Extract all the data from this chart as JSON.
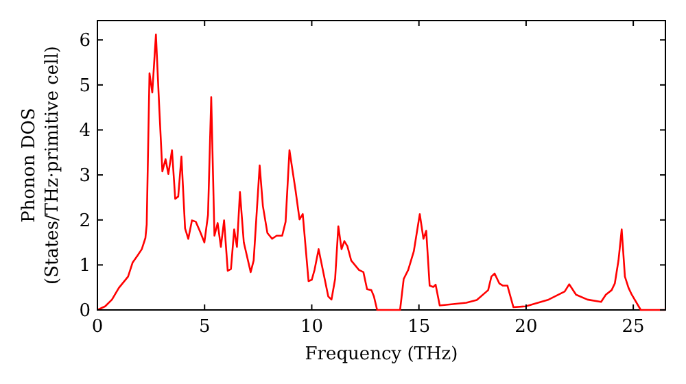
{
  "chart_data": {
    "type": "line",
    "xlabel": "Frequency (THz)",
    "ylabel": "Phonon DOS\n(States/THz·primitive cell)",
    "xlim": [
      0,
      26.5
    ],
    "ylim": [
      0,
      6.43
    ],
    "xticks": [
      0,
      5,
      10,
      15,
      20,
      25
    ],
    "yticks": [
      0,
      1,
      2,
      3,
      4,
      5,
      6
    ],
    "grid": false,
    "marker": "none",
    "line_style": "solid",
    "series": [
      {
        "color": "#ff0000",
        "x": [
          0,
          0.36,
          0.68,
          1.0,
          1.43,
          1.64,
          1.86,
          2.07,
          2.24,
          2.3,
          2.43,
          2.56,
          2.73,
          2.88,
          3.03,
          3.18,
          3.31,
          3.48,
          3.63,
          3.77,
          3.92,
          4.09,
          4.24,
          4.41,
          4.59,
          4.8,
          4.99,
          5.16,
          5.31,
          5.46,
          5.61,
          5.76,
          5.91,
          6.08,
          6.23,
          6.38,
          6.51,
          6.65,
          6.83,
          7.15,
          7.29,
          7.57,
          7.72,
          7.93,
          8.15,
          8.36,
          8.62,
          8.78,
          8.96,
          9.24,
          9.43,
          9.58,
          9.85,
          10.0,
          10.13,
          10.32,
          10.56,
          10.77,
          10.92,
          11.09,
          11.24,
          11.39,
          11.52,
          11.66,
          11.84,
          12.2,
          12.41,
          12.58,
          12.78,
          12.9,
          13.05,
          14.12,
          14.29,
          14.5,
          14.76,
          15.04,
          15.21,
          15.34,
          15.5,
          15.67,
          15.78,
          15.97,
          17.21,
          17.7,
          18.23,
          18.38,
          18.53,
          18.75,
          18.92,
          19.13,
          19.41,
          19.98,
          21.05,
          21.8,
          22.01,
          22.33,
          22.86,
          23.5,
          23.72,
          23.99,
          24.14,
          24.31,
          24.46,
          24.61,
          24.78,
          24.93,
          25.35,
          26.5
        ],
        "values": [
          0,
          0.08,
          0.23,
          0.49,
          0.74,
          1.05,
          1.2,
          1.35,
          1.6,
          1.9,
          5.26,
          4.83,
          6.12,
          4.55,
          3.08,
          3.35,
          3.02,
          3.55,
          2.47,
          2.52,
          3.41,
          1.81,
          1.58,
          1.99,
          1.96,
          1.73,
          1.5,
          2.11,
          4.73,
          1.65,
          1.93,
          1.4,
          1.99,
          0.87,
          0.91,
          1.79,
          1.4,
          2.62,
          1.5,
          0.84,
          1.1,
          3.21,
          2.31,
          1.71,
          1.58,
          1.65,
          1.65,
          1.96,
          3.55,
          2.67,
          2.01,
          2.13,
          0.64,
          0.67,
          0.89,
          1.35,
          0.79,
          0.3,
          0.23,
          0.69,
          1.86,
          1.35,
          1.53,
          1.42,
          1.1,
          0.89,
          0.84,
          0.46,
          0.44,
          0.3,
          0,
          0,
          0.69,
          0.89,
          1.3,
          2.13,
          1.58,
          1.76,
          0.54,
          0.51,
          0.56,
          0.1,
          0.16,
          0.22,
          0.44,
          0.74,
          0.81,
          0.59,
          0.54,
          0.54,
          0.06,
          0.08,
          0.23,
          0.41,
          0.57,
          0.34,
          0.23,
          0.18,
          0.34,
          0.44,
          0.59,
          1.1,
          1.79,
          0.74,
          0.49,
          0.34,
          0,
          0
        ]
      }
    ]
  }
}
